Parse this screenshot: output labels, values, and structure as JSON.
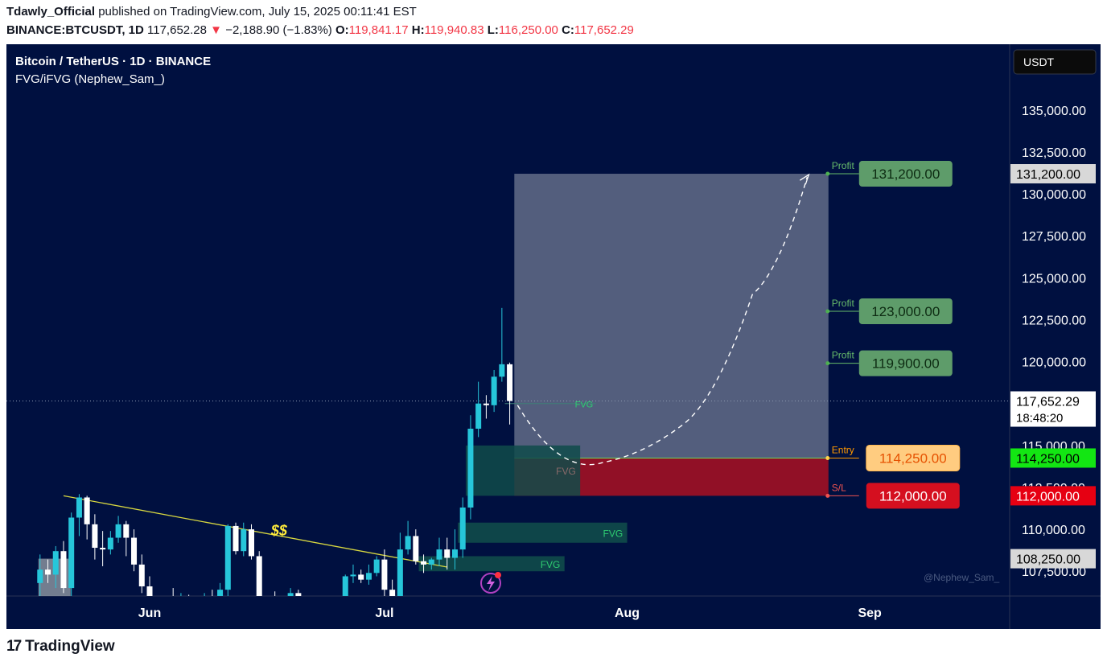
{
  "header": {
    "author": "Tdawly_Official",
    "published_text": "published on TradingView.com, July 15, 2025 00:11:41 EST",
    "symbol": "BINANCE:BTCUSDT, 1D",
    "last": "117,652.28",
    "change_arrow": "▼",
    "change": "−2,188.90 (−1.83%)",
    "o_label": "O:",
    "o": "119,841.17",
    "h_label": "H:",
    "h": "119,940.83",
    "l_label": "L:",
    "l": "116,250.00",
    "c_label": "C:",
    "c": "117,652.29"
  },
  "chart_title": "Bitcoin / TetherUS · 1D · BINANCE",
  "indicator_name": "FVG/iFVG (Nephew_Sam_)",
  "currency": "USDT",
  "watermark": "@Nephew_Sam_",
  "footer_brand": "TradingView",
  "colors": {
    "background": "#001040",
    "up": "#26c6da",
    "down": "#ffffff",
    "profit": "#5e9c6a",
    "entry": "#ffcc80",
    "stop": "#d50f1f",
    "current": "#ffffff",
    "fvg": "#0f4b4a",
    "trendline": "#d8d840"
  },
  "chart_data": {
    "type": "candlestick",
    "timeframe": "1D",
    "ylim": [
      106000,
      136500
    ],
    "y_ticks": [
      107500,
      110000,
      112500,
      115000,
      117500,
      120000,
      122500,
      125000,
      127500,
      130000,
      132500,
      135000
    ],
    "y_tick_labels": [
      "107,500.00",
      "110,000.00",
      "112,500.00",
      "115,000.00",
      "117,500.00",
      "120,000.00",
      "122,500.00",
      "125,000.00",
      "127,500.00",
      "130,000.00",
      "132,500.00",
      "135,000.00"
    ],
    "x_labels": [
      {
        "label": "Jun",
        "day": 0
      },
      {
        "label": "Jul",
        "day": 30
      },
      {
        "label": "Aug",
        "day": 61
      },
      {
        "label": "Sep",
        "day": 92
      }
    ],
    "candles": [
      {
        "day": -14,
        "o": 106800,
        "h": 108500,
        "l": 106000,
        "c": 107600
      },
      {
        "day": -13,
        "o": 107600,
        "h": 108200,
        "l": 106800,
        "c": 107300
      },
      {
        "day": -12,
        "o": 107300,
        "h": 109000,
        "l": 106500,
        "c": 108700
      },
      {
        "day": -11,
        "o": 108700,
        "h": 109300,
        "l": 106200,
        "c": 106500
      },
      {
        "day": -10,
        "o": 106500,
        "h": 111000,
        "l": 106000,
        "c": 110700
      },
      {
        "day": -9,
        "o": 110700,
        "h": 112100,
        "l": 109600,
        "c": 111900
      },
      {
        "day": -8,
        "o": 111900,
        "h": 112000,
        "l": 109400,
        "c": 110300
      },
      {
        "day": -7,
        "o": 110300,
        "h": 110900,
        "l": 108200,
        "c": 108900
      },
      {
        "day": -6,
        "o": 108900,
        "h": 109900,
        "l": 107800,
        "c": 108800
      },
      {
        "day": -5,
        "o": 108800,
        "h": 109900,
        "l": 108500,
        "c": 109500
      },
      {
        "day": -4,
        "o": 109500,
        "h": 110800,
        "l": 109200,
        "c": 110300
      },
      {
        "day": -3,
        "o": 110300,
        "h": 110500,
        "l": 108400,
        "c": 109500
      },
      {
        "day": -2,
        "o": 109500,
        "h": 110000,
        "l": 107500,
        "c": 107900
      },
      {
        "day": -1,
        "o": 107900,
        "h": 108500,
        "l": 106200,
        "c": 106600
      },
      {
        "day": 0,
        "o": 106600,
        "h": 107200,
        "l": 104400,
        "c": 104800
      },
      {
        "day": 1,
        "o": 104800,
        "h": 105500,
        "l": 104000,
        "c": 105300
      },
      {
        "day": 2,
        "o": 105300,
        "h": 106000,
        "l": 104700,
        "c": 105800
      },
      {
        "day": 3,
        "o": 105800,
        "h": 106500,
        "l": 105200,
        "c": 105400
      },
      {
        "day": 4,
        "o": 105400,
        "h": 106200,
        "l": 104900,
        "c": 105900
      },
      {
        "day": 5,
        "o": 105900,
        "h": 106100,
        "l": 104800,
        "c": 105300
      },
      {
        "day": 6,
        "o": 105300,
        "h": 105900,
        "l": 103500,
        "c": 104000
      },
      {
        "day": 7,
        "o": 104000,
        "h": 106200,
        "l": 103700,
        "c": 105900
      },
      {
        "day": 8,
        "o": 105900,
        "h": 106400,
        "l": 105000,
        "c": 105500
      },
      {
        "day": 9,
        "o": 105500,
        "h": 106800,
        "l": 105300,
        "c": 106400
      },
      {
        "day": 10,
        "o": 106400,
        "h": 110300,
        "l": 106000,
        "c": 110200
      },
      {
        "day": 11,
        "o": 110200,
        "h": 110400,
        "l": 108500,
        "c": 108700
      },
      {
        "day": 12,
        "o": 108700,
        "h": 110400,
        "l": 108400,
        "c": 110000
      },
      {
        "day": 13,
        "o": 110000,
        "h": 110300,
        "l": 108200,
        "c": 108400
      },
      {
        "day": 14,
        "o": 108400,
        "h": 108700,
        "l": 104900,
        "c": 105400
      },
      {
        "day": 15,
        "o": 105400,
        "h": 106000,
        "l": 104800,
        "c": 105500
      },
      {
        "day": 16,
        "o": 105500,
        "h": 106300,
        "l": 104500,
        "c": 104900
      },
      {
        "day": 17,
        "o": 104900,
        "h": 105800,
        "l": 104000,
        "c": 105600
      },
      {
        "day": 18,
        "o": 105600,
        "h": 106500,
        "l": 104800,
        "c": 106200
      },
      {
        "day": 19,
        "o": 106200,
        "h": 106400,
        "l": 104400,
        "c": 104700
      },
      {
        "day": 20,
        "o": 104700,
        "h": 105200,
        "l": 103500,
        "c": 103900
      },
      {
        "day": 21,
        "o": 103900,
        "h": 104900,
        "l": 103600,
        "c": 104500
      },
      {
        "day": 22,
        "o": 104500,
        "h": 105100,
        "l": 103200,
        "c": 103800
      },
      {
        "day": 23,
        "o": 103800,
        "h": 104500,
        "l": 103500,
        "c": 104200
      },
      {
        "day": 24,
        "o": 104200,
        "h": 106000,
        "l": 104000,
        "c": 105700
      },
      {
        "day": 25,
        "o": 105700,
        "h": 107300,
        "l": 105500,
        "c": 107200
      },
      {
        "day": 26,
        "o": 107200,
        "h": 107900,
        "l": 106800,
        "c": 107300
      },
      {
        "day": 27,
        "o": 107300,
        "h": 107600,
        "l": 106800,
        "c": 107000
      },
      {
        "day": 28,
        "o": 107000,
        "h": 107900,
        "l": 106700,
        "c": 107400
      },
      {
        "day": 29,
        "o": 107400,
        "h": 108400,
        "l": 107200,
        "c": 108200
      },
      {
        "day": 30,
        "o": 108200,
        "h": 108800,
        "l": 106000,
        "c": 106400
      },
      {
        "day": 31,
        "o": 106400,
        "h": 107000,
        "l": 105100,
        "c": 105500
      },
      {
        "day": 32,
        "o": 105500,
        "h": 109800,
        "l": 105300,
        "c": 108800
      },
      {
        "day": 33,
        "o": 108800,
        "h": 110500,
        "l": 108500,
        "c": 109600
      },
      {
        "day": 34,
        "o": 109600,
        "h": 110000,
        "l": 107900,
        "c": 108100
      },
      {
        "day": 35,
        "o": 108100,
        "h": 108500,
        "l": 107400,
        "c": 107900
      },
      {
        "day": 36,
        "o": 107900,
        "h": 108300,
        "l": 107600,
        "c": 108200
      },
      {
        "day": 37,
        "o": 108200,
        "h": 109500,
        "l": 107800,
        "c": 108800
      },
      {
        "day": 38,
        "o": 108800,
        "h": 109500,
        "l": 107600,
        "c": 108300
      },
      {
        "day": 39,
        "o": 108300,
        "h": 110000,
        "l": 107600,
        "c": 108800
      },
      {
        "day": 40,
        "o": 108800,
        "h": 111900,
        "l": 108300,
        "c": 111300
      },
      {
        "day": 41,
        "o": 111300,
        "h": 116800,
        "l": 110600,
        "c": 116000
      },
      {
        "day": 42,
        "o": 116000,
        "h": 118800,
        "l": 115500,
        "c": 117500
      },
      {
        "day": 43,
        "o": 117500,
        "h": 118000,
        "l": 116600,
        "c": 117400
      },
      {
        "day": 44,
        "o": 117400,
        "h": 119500,
        "l": 117000,
        "c": 119100
      },
      {
        "day": 45,
        "o": 119100,
        "h": 123200,
        "l": 118800,
        "c": 119841
      },
      {
        "day": 46,
        "o": 119841,
        "h": 119941,
        "l": 116250,
        "c": 117652
      }
    ],
    "fvg_zones": [
      {
        "label": "FVG",
        "day_from": 41,
        "day_to": 55,
        "low": 112000,
        "high": 115000
      },
      {
        "label": "FVG",
        "day_from": 40,
        "day_to": 61,
        "low": 109200,
        "high": 110400
      },
      {
        "label": "FVG",
        "day_from": 35,
        "day_to": 53,
        "low": 107500,
        "high": 108400
      },
      {
        "label": "FVG",
        "day_from": 46,
        "day_to": 57,
        "low": 117500,
        "high": 117500
      }
    ],
    "trendline": {
      "day_from": -11,
      "price_from": 112000,
      "day_to": 38,
      "price_to": 107750,
      "label": "$$"
    },
    "position": {
      "type": "long",
      "day_from": 47,
      "day_to": 86,
      "entry": 114250,
      "stop": 112000,
      "target": 131200
    },
    "levels": [
      {
        "name": "Profit",
        "value": 131200,
        "label": "131,200.00",
        "kind": "profit"
      },
      {
        "name": "Profit",
        "value": 123000,
        "label": "123,000.00",
        "kind": "profit"
      },
      {
        "name": "Profit",
        "value": 119900,
        "label": "119,900.00",
        "kind": "profit"
      },
      {
        "name": "Entry",
        "value": 114250,
        "label": "114,250.00",
        "kind": "entry"
      },
      {
        "name": "S/L",
        "value": 112000,
        "label": "112,000.00",
        "kind": "stop"
      }
    ],
    "axis_badges": [
      {
        "value": 131200,
        "label": "131,200.00",
        "kind": "grey"
      },
      {
        "value": 117652.29,
        "label": "117,652.29",
        "sub": "18:48:20",
        "kind": "current"
      },
      {
        "value": 114250,
        "label": "114,250.00",
        "kind": "green"
      },
      {
        "value": 112000,
        "label": "112,000.00",
        "kind": "red"
      },
      {
        "value": 108250,
        "label": "108,250.00",
        "kind": "grey"
      }
    ],
    "projection": [
      {
        "day": 47,
        "price": 117400
      },
      {
        "day": 58,
        "price": 114000
      },
      {
        "day": 68,
        "price": 116200
      },
      {
        "day": 77,
        "price": 124000
      },
      {
        "day": 84,
        "price": 131000
      }
    ]
  }
}
